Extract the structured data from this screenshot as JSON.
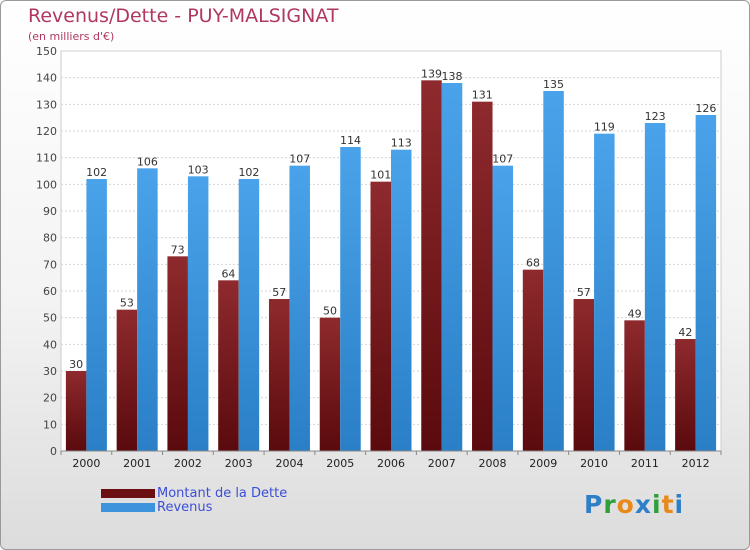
{
  "title": "Revenus/Dette - PUY-MALSIGNAT",
  "subtitle": "(en milliers d'€)",
  "logo": {
    "letters": [
      "P",
      "r",
      "o",
      "x",
      "i",
      "t",
      "i"
    ],
    "colors": [
      "#2f7fc8",
      "#2f9f3a",
      "#e8891a",
      "#2f7fc8",
      "#2f9f3a",
      "#e8891a",
      "#2f7fc8"
    ]
  },
  "colors": {
    "dette": "#7a1c1f",
    "revenus": "#3d93dc",
    "title": "#b0385f",
    "legend_text": "#3b4fd6"
  },
  "legend": [
    {
      "label": "Montant de la Dette",
      "color": "#6b0f12"
    },
    {
      "label": "Revenus",
      "color": "#3d93dc"
    }
  ],
  "chart_data": {
    "type": "bar",
    "title": "Revenus/Dette - PUY-MALSIGNAT",
    "ylabel": "(en milliers d'€)",
    "xlabel": "",
    "ylim": [
      0,
      150
    ],
    "yticks": [
      0,
      10,
      20,
      30,
      40,
      50,
      60,
      70,
      80,
      90,
      100,
      110,
      120,
      130,
      140,
      150
    ],
    "grid": true,
    "categories": [
      "2000",
      "2001",
      "2002",
      "2003",
      "2004",
      "2005",
      "2006",
      "2007",
      "2008",
      "2009",
      "2010",
      "2011",
      "2012"
    ],
    "series": [
      {
        "name": "Montant de la Dette",
        "values": [
          30,
          53,
          73,
          64,
          57,
          50,
          101,
          139,
          131,
          68,
          57,
          49,
          42
        ]
      },
      {
        "name": "Revenus",
        "values": [
          102,
          106,
          103,
          102,
          107,
          114,
          113,
          138,
          107,
          135,
          119,
          123,
          126
        ]
      }
    ]
  }
}
